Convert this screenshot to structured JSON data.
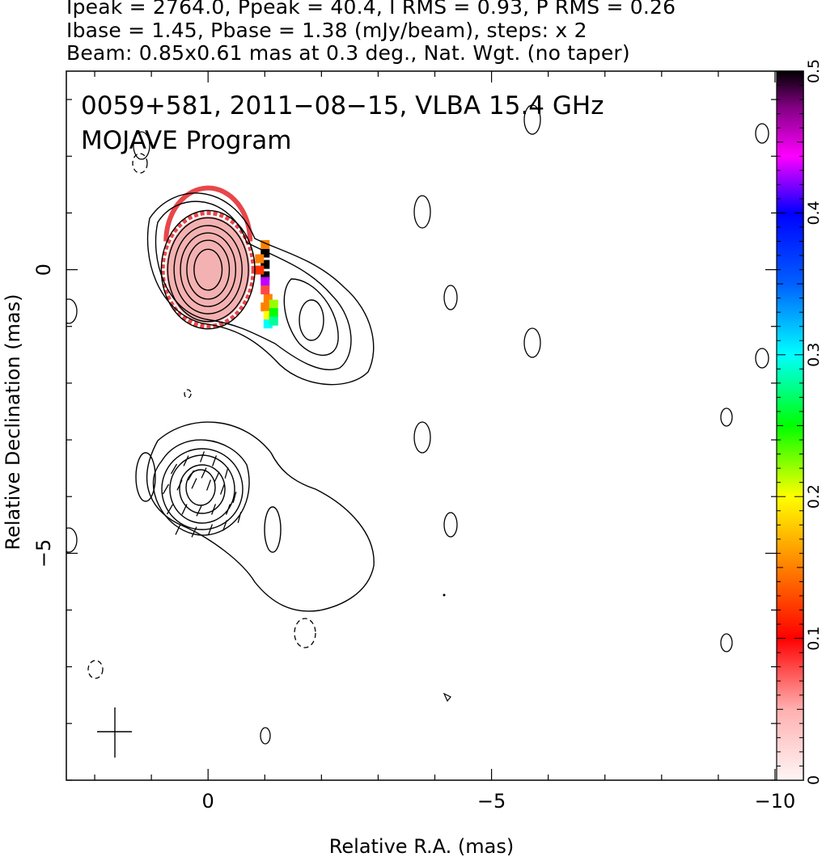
{
  "header": {
    "line1": "Ipeak = 2764.0, Ppeak = 40.4, I RMS = 0.93, P RMS = 0.26",
    "line2": "Ibase = 1.45, Pbase = 1.38 (mJy/beam), steps: x 2",
    "line3": "Beam: 0.85x0.61 mas at 0.3 deg., Nat. Wgt. (no taper)"
  },
  "plot": {
    "title_line1": "0059+581, 2011−08−15, VLBA 15.4 GHz",
    "title_line2": "MOJAVE Program"
  },
  "chart_data": {
    "type": "contour",
    "xlabel": "Relative R.A. (mas)",
    "ylabel": "Relative Declination (mas)",
    "xlim": [
      2.5,
      -10.5
    ],
    "ylim": [
      -9.0,
      3.5
    ],
    "x_ticks": [
      {
        "value": 0,
        "label": "0"
      },
      {
        "value": -5,
        "label": "−5"
      },
      {
        "value": -10,
        "label": "−10"
      }
    ],
    "y_ticks": [
      {
        "value": 0,
        "label": "0"
      },
      {
        "value": -5,
        "label": "−5"
      }
    ],
    "colorbar": {
      "range": [
        0,
        0.5
      ],
      "ticks": [
        {
          "value": 0,
          "label": "0"
        },
        {
          "value": 0.1,
          "label": "0.1"
        },
        {
          "value": 0.2,
          "label": "0.2"
        },
        {
          "value": 0.3,
          "label": "0.3"
        },
        {
          "value": 0.4,
          "label": "0.4"
        },
        {
          "value": 0.5,
          "label": "0.5"
        }
      ]
    },
    "upper_panel_offset_dec": 0,
    "lower_panel_offset_dec": -4,
    "total_intensity_contours": [
      {
        "cx": 0.0,
        "cy": 0.0,
        "rx": 1.1,
        "ry": 1.45
      },
      {
        "cx": 0.0,
        "cy": 0.0,
        "rx": 0.95,
        "ry": 1.27
      },
      {
        "cx": 0.0,
        "cy": 0.0,
        "rx": 0.8,
        "ry": 1.08
      },
      {
        "cx": 0.0,
        "cy": 0.0,
        "rx": 0.65,
        "ry": 0.9
      },
      {
        "cx": 0.0,
        "cy": 0.0,
        "rx": 0.5,
        "ry": 0.72
      },
      {
        "cx": 0.0,
        "cy": 0.0,
        "rx": 0.33,
        "ry": 0.5
      }
    ],
    "polarization_pixels": [
      {
        "x": -1.0,
        "y": 0.3,
        "value": 0.5
      },
      {
        "x": -1.0,
        "y": 0.1,
        "value": 0.5
      },
      {
        "x": -1.0,
        "y": -0.1,
        "value": 0.5
      },
      {
        "x": -0.9,
        "y": 0.2,
        "value": 0.15
      },
      {
        "x": -1.0,
        "y": -0.2,
        "value": 0.43
      },
      {
        "x": -1.0,
        "y": 0.45,
        "value": 0.15
      },
      {
        "x": -1.05,
        "y": -0.5,
        "value": 0.15
      },
      {
        "x": -0.9,
        "y": 0.0,
        "value": 0.12
      },
      {
        "x": -1.0,
        "y": -0.35,
        "value": 0.08
      },
      {
        "x": -1.0,
        "y": -0.65,
        "value": 0.15
      },
      {
        "x": -1.05,
        "y": -0.8,
        "value": 0.2
      },
      {
        "x": -1.15,
        "y": -0.6,
        "value": 0.22
      },
      {
        "x": -1.15,
        "y": -0.75,
        "value": 0.25
      },
      {
        "x": -1.05,
        "y": -0.95,
        "value": 0.3
      },
      {
        "x": -1.15,
        "y": -0.9,
        "value": 0.28
      }
    ],
    "beam": {
      "major_mas": 0.85,
      "minor_mas": 0.61,
      "pa_deg": 0.3
    }
  }
}
